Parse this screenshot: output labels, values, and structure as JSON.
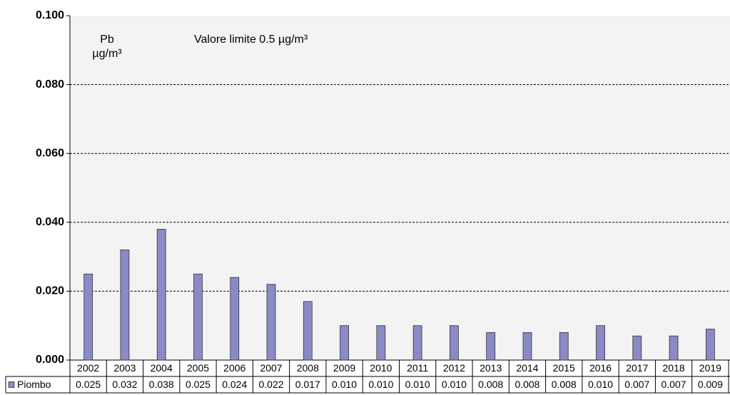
{
  "chart_data": {
    "type": "bar",
    "annotations": [
      "Pb",
      "µg/m³",
      "Valore limite 0.5 µg/m³"
    ],
    "categories": [
      "2002",
      "2003",
      "2004",
      "2005",
      "2006",
      "2007",
      "2008",
      "2009",
      "2010",
      "2011",
      "2012",
      "2013",
      "2014",
      "2015",
      "2016",
      "2017",
      "2018",
      "2019"
    ],
    "series": [
      {
        "name": "Piombo",
        "color": "#8a8ac6",
        "values": [
          0.025,
          0.032,
          0.038,
          0.025,
          0.024,
          0.022,
          0.017,
          0.01,
          0.01,
          0.01,
          0.01,
          0.008,
          0.008,
          0.008,
          0.01,
          0.007,
          0.007,
          0.009
        ],
        "value_labels": [
          "0.025",
          "0.032",
          "0.038",
          "0.025",
          "0.024",
          "0.022",
          "0.017",
          "0.010",
          "0.010",
          "0.010",
          "0.010",
          "0.008",
          "0.008",
          "0.008",
          "0.010",
          "0.007",
          "0.007",
          "0.009"
        ]
      }
    ],
    "ylim": [
      0,
      0.1
    ],
    "yticks": [
      {
        "value": 0,
        "label": "0.000"
      },
      {
        "value": 0.02,
        "label": "0.020"
      },
      {
        "value": 0.04,
        "label": "0.040"
      },
      {
        "value": 0.06,
        "label": "0.060"
      },
      {
        "value": 0.08,
        "label": "0.080"
      },
      {
        "value": 0.1,
        "label": "0.100"
      }
    ],
    "grid": true
  }
}
